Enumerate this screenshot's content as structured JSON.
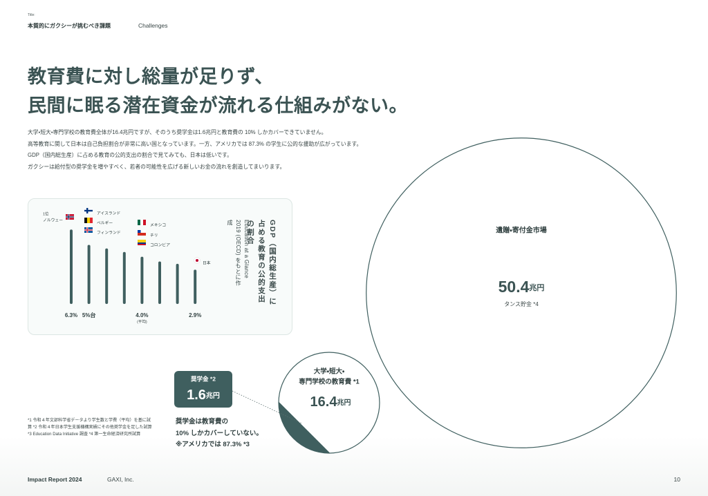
{
  "header": {
    "label": "Title:",
    "title": "本質的にガクシーが挑むべき課題",
    "subtitle": "Challenges"
  },
  "headline": [
    "教育費に対し総量が足りず、",
    "民間に眠る潜在資金が流れる仕組みがない。"
  ],
  "paragraph": [
    "大学・短大・専門学校の教育費全体が16.4兆円ですが、そのうち奨学金は1.6兆円と教育費の 10% しかカバーできていません。",
    "高等教育に関して日本は自己負担割合が非常に高い国となっています。一方、アメリカでは 87.3% の学生に公的な援助が広がっています。",
    "GDP（国内総生産）に占める教育の公的支出の割合で見てみても、日本は低いです。",
    "ガクシーは給付型の奨学金を増やすべく、若者の可能性を広げる新しいお金の流れを創造してまいります。"
  ],
  "chart_data": {
    "type": "bar",
    "title": "GDP（国内総生産）に占める教育の公的支出の割合",
    "source": "Education at a Glance 2019 (OECD) をもとに作成",
    "rank_label": "1位",
    "categories": [
      "ノルウェー",
      "アイスランド",
      "ベルギー",
      "フィンランド",
      "メキシコ",
      "チリ",
      "コロンビア",
      "日本"
    ],
    "values": [
      6.3,
      5.0,
      4.7,
      4.4,
      4.0,
      3.6,
      3.4,
      2.9
    ],
    "value_labels": [
      "6.3%",
      "5%台",
      null,
      null,
      "4.0%",
      null,
      null,
      "2.9%"
    ],
    "average_label": "(平均)",
    "color": "#3f5f5f"
  },
  "circles": [
    {
      "label_lines": [
        "遺贈・寄付金市場"
      ],
      "value": 50.4,
      "unit": "兆円",
      "sub": "タンス貯金 *4"
    },
    {
      "label_lines": [
        "大学・短大・",
        "専門学校の教育費 *1"
      ],
      "value": 16.4,
      "unit": "兆円"
    }
  ],
  "scholarship": {
    "label": "奨学金 *2",
    "value": 1.6,
    "unit": "兆円",
    "color": "#3f5f5f"
  },
  "note": [
    "奨学金は教育費の",
    "10% しかカバーしていない。",
    "※アメリカでは 87.3% *3"
  ],
  "footnotes": [
    "*1 令和４年文部科学省データより学生数と学費（平均）を基に試算",
    "*2 令和４年日本学生支援機構実績にその他奨学金を足した試算",
    "*3 Education Data Initiative 調査",
    "*4 第一生命経済研究所試算"
  ],
  "footer": {
    "report": "Impact Report 2024",
    "company": "GAXI, Inc.",
    "page": "10"
  }
}
